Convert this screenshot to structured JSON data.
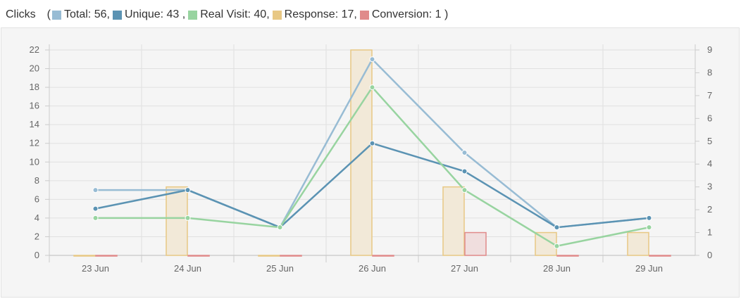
{
  "header": {
    "title": "Clicks",
    "open_paren": "(",
    "close_paren": ")",
    "legend": [
      {
        "label": "Total: 56,",
        "color": "#98bcd4"
      },
      {
        "label": "Unique: 43 ,",
        "color": "#5b93b3"
      },
      {
        "label": "Real Visit: 40,",
        "color": "#98d4a0"
      },
      {
        "label": "Response: 17,",
        "color": "#e8c884"
      },
      {
        "label": "Conversion: 1 )",
        "color": "#e08a8a"
      }
    ]
  },
  "chart_data": {
    "type": "bar+line",
    "categories": [
      "23 Jun",
      "24 Jun",
      "25 Jun",
      "26 Jun",
      "27 Jun",
      "28 Jun",
      "29 Jun"
    ],
    "y_left": {
      "ticks": [
        0,
        2,
        4,
        6,
        8,
        10,
        12,
        14,
        16,
        18,
        20,
        22
      ],
      "ylim": [
        0,
        22
      ]
    },
    "y_right": {
      "ticks": [
        0,
        1,
        2,
        3,
        4,
        5,
        6,
        7,
        8,
        9
      ],
      "ylim": [
        0,
        9
      ]
    },
    "grid": true,
    "series": [
      {
        "name": "Total",
        "type": "line",
        "axis": "left",
        "color": "#98bcd4",
        "values": [
          7,
          7,
          3,
          21,
          11,
          3,
          4
        ]
      },
      {
        "name": "Unique",
        "type": "line",
        "axis": "left",
        "color": "#5b93b3",
        "values": [
          5,
          7,
          3,
          12,
          9,
          3,
          4
        ]
      },
      {
        "name": "Real Visit",
        "type": "line",
        "axis": "left",
        "color": "#98d4a0",
        "values": [
          4,
          4,
          3,
          18,
          7,
          1,
          3
        ]
      },
      {
        "name": "Response",
        "type": "bar",
        "axis": "right",
        "color": "#e8c884",
        "fill": "#f2e9d8",
        "values": [
          0,
          3,
          0,
          9,
          3,
          1,
          1
        ]
      },
      {
        "name": "Conversion",
        "type": "bar",
        "axis": "right",
        "color": "#e08a8a",
        "fill": "#f0dede",
        "values": [
          0,
          0,
          0,
          0,
          1,
          0,
          0
        ]
      }
    ]
  }
}
